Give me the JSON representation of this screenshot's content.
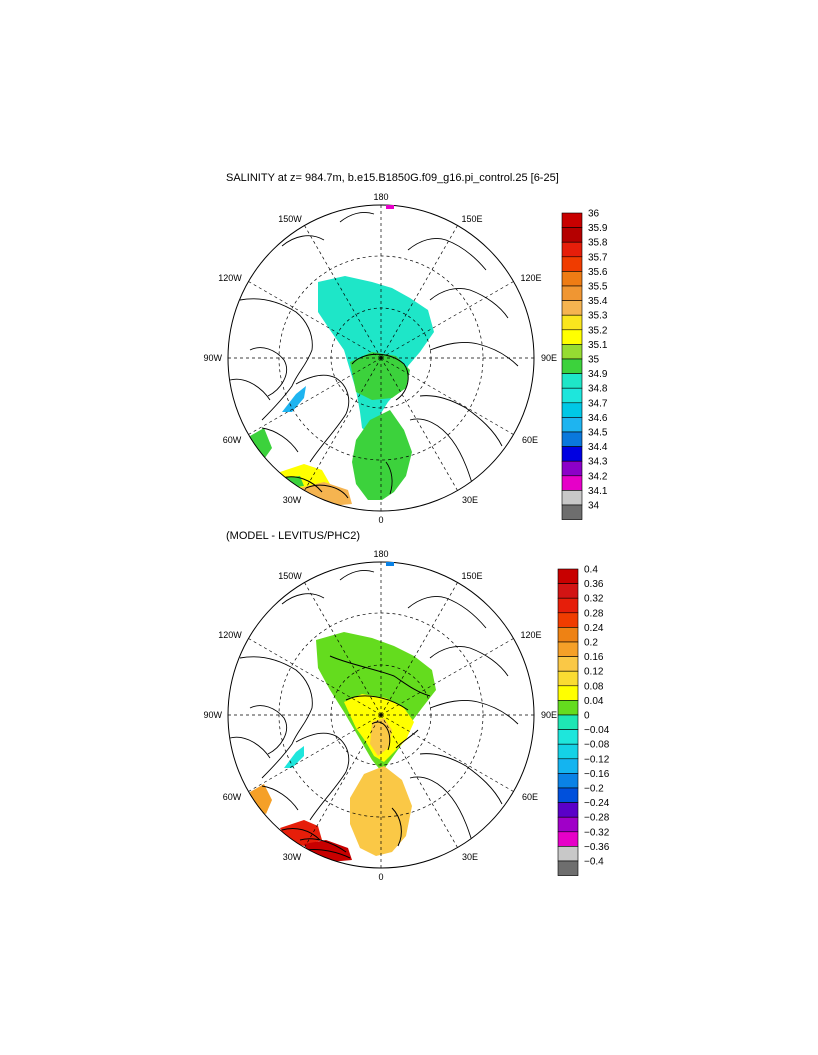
{
  "map1": {
    "title": "SALINITY at z= 984.7m, b.e15.B1850G.f09_g16.pi_control.25 [6-25]",
    "lon_labels": {
      "top": "180",
      "bottom": "0",
      "left": "90W",
      "right": "90E",
      "upper_left_1": "150W",
      "upper_left_2": "120W",
      "upper_right_1": "150E",
      "upper_right_2": "120E",
      "lower_left_1": "60W",
      "lower_left_2": "30W",
      "lower_right_1": "60E",
      "lower_right_2": "30E"
    },
    "colorbar": {
      "labels": [
        "36",
        "35.9",
        "35.8",
        "35.7",
        "35.6",
        "35.5",
        "35.4",
        "35.3",
        "35.2",
        "35.1",
        "35",
        "34.9",
        "34.8",
        "34.7",
        "34.6",
        "34.5",
        "34.4",
        "34.3",
        "34.2",
        "34.1",
        "34"
      ],
      "colors": [
        "#c80000",
        "#b40000",
        "#e61e0a",
        "#f03c00",
        "#ee7c14",
        "#f09632",
        "#f5b450",
        "#fae61e",
        "#ffff00",
        "#96dc32",
        "#3cd23c",
        "#1ee6c8",
        "#1ee6dc",
        "#00c8e6",
        "#1eb4f0",
        "#0a78dc",
        "#0000e1",
        "#8c00c8",
        "#e600c8",
        "#c8c8c8",
        "#6e6e6e"
      ]
    }
  },
  "map2": {
    "title": "(MODEL - LEVITUS/PHC2)",
    "lon_labels": {
      "top": "180",
      "bottom": "0",
      "left": "90W",
      "right": "90E",
      "upper_left_1": "150W",
      "upper_left_2": "120W",
      "upper_right_1": "150E",
      "upper_right_2": "120E",
      "lower_left_1": "60W",
      "lower_left_2": "30W",
      "lower_right_1": "60E",
      "lower_right_2": "30E"
    },
    "colorbar": {
      "labels": [
        "0.4",
        "0.36",
        "0.32",
        "0.28",
        "0.24",
        "0.2",
        "0.16",
        "0.12",
        "0.08",
        "0.04",
        "0",
        "−0.04",
        "−0.08",
        "−0.12",
        "−0.16",
        "−0.2",
        "−0.24",
        "−0.28",
        "−0.32",
        "−0.36",
        "−0.4"
      ],
      "colors": [
        "#c80000",
        "#d21414",
        "#e61e0a",
        "#f03c00",
        "#ee8214",
        "#f5a028",
        "#fac846",
        "#fadc32",
        "#ffff00",
        "#64dc1e",
        "#1ee6b4",
        "#1ee6dc",
        "#14d2e6",
        "#14b4f0",
        "#0a82e6",
        "#0050dc",
        "#5a00c8",
        "#a000c8",
        "#e600c8",
        "#c8c8c8",
        "#6e6e6e"
      ]
    }
  },
  "colors": {
    "cyan_fill": "#1ee6c8",
    "green_fill": "#3cd23c",
    "yellow_fill": "#ffff00",
    "orange_fill": "#fac846",
    "red_fill": "#c80000"
  }
}
